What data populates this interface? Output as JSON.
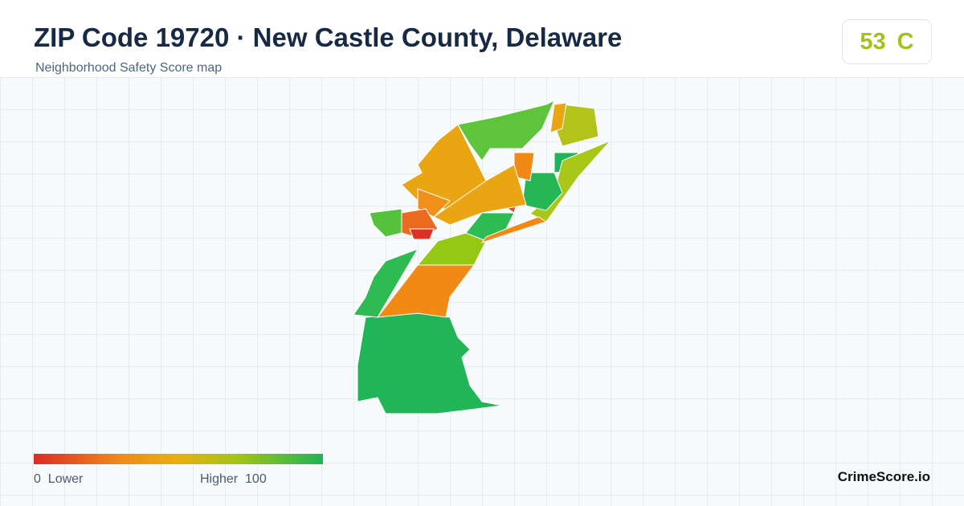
{
  "header": {
    "title": "ZIP Code 19720 · New Castle County, Delaware",
    "subtitle": "Neighborhood Safety Score map"
  },
  "score": {
    "value": 53,
    "grade": "C"
  },
  "legend": {
    "min": 0,
    "min_label": "Lower",
    "max_label": "Higher",
    "max": 100
  },
  "brand": "CrimeScore.io"
}
